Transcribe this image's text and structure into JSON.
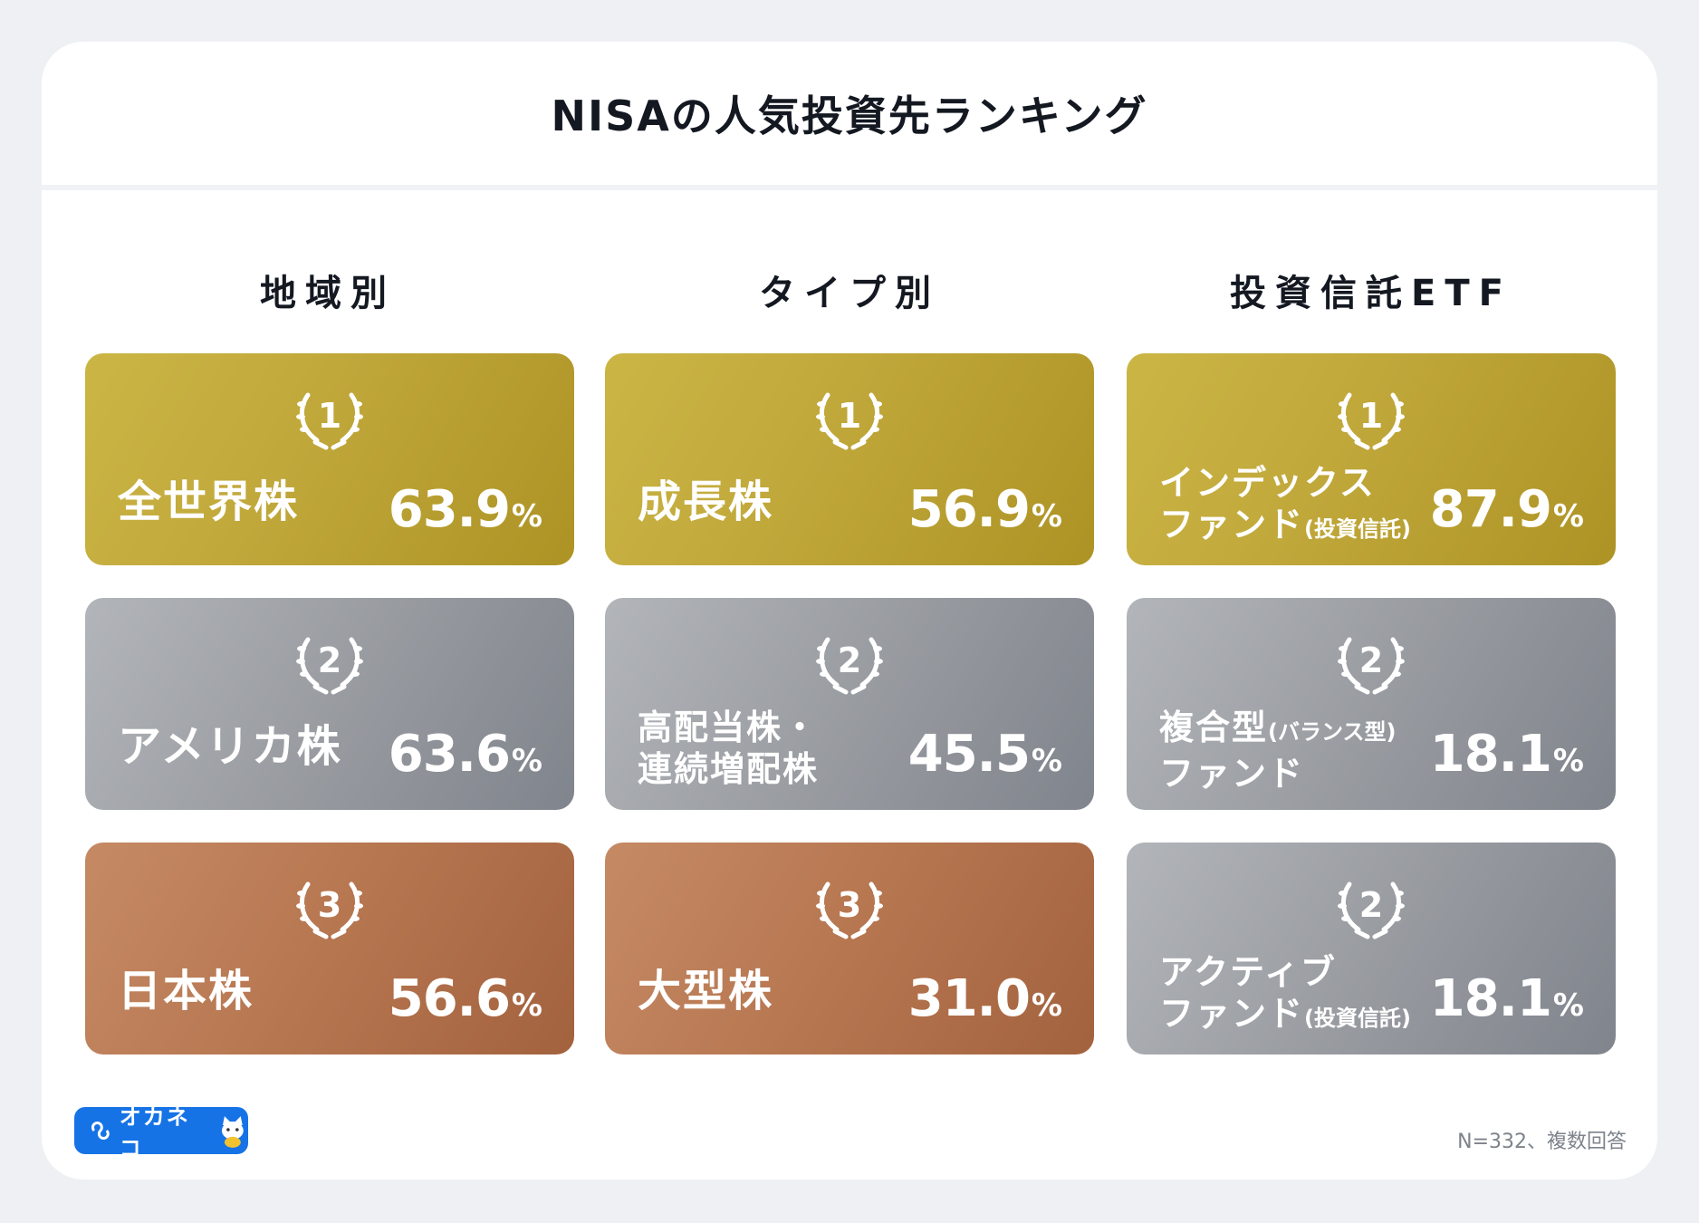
{
  "title": "NISAの人気投資先ランキング",
  "columns": [
    {
      "heading": "地域別",
      "items": [
        {
          "rank": "1",
          "tier": "gold",
          "label": "全世界株",
          "value": "63.9",
          "unit": "%"
        },
        {
          "rank": "2",
          "tier": "silver",
          "label": "アメリカ株",
          "value": "63.6",
          "unit": "%"
        },
        {
          "rank": "3",
          "tier": "bronze",
          "label": "日本株",
          "value": "56.6",
          "unit": "%"
        }
      ]
    },
    {
      "heading": "タイプ別",
      "items": [
        {
          "rank": "1",
          "tier": "gold",
          "label": "成長株",
          "value": "56.9",
          "unit": "%"
        },
        {
          "rank": "2",
          "tier": "silver",
          "label_line1": "高配当株・",
          "label_line2": "連続増配株",
          "value": "45.5",
          "unit": "%"
        },
        {
          "rank": "3",
          "tier": "bronze",
          "label": "大型株",
          "value": "31.0",
          "unit": "%"
        }
      ]
    },
    {
      "heading": "投資信託ETF",
      "items": [
        {
          "rank": "1",
          "tier": "gold",
          "label_line1": "インデックス",
          "label_line2": "ファンド",
          "label_sub": "(投資信託)",
          "value": "87.9",
          "unit": "%"
        },
        {
          "rank": "2",
          "tier": "silver",
          "label_line1": "複合型",
          "label_sub_line1": "(バランス型)",
          "label_line2": "ファンド",
          "value": "18.1",
          "unit": "%"
        },
        {
          "rank": "2",
          "tier": "silver",
          "label_line1": "アクティブ",
          "label_line2": "ファンド",
          "label_sub": "(投資信託)",
          "value": "18.1",
          "unit": "%"
        }
      ]
    }
  ],
  "logo": {
    "text": "オカネコ"
  },
  "footnote": "N=332、複数回答",
  "colors": {
    "gold": "#c0a73a",
    "silver": "#999ca1",
    "bronze": "#b67650",
    "brand": "#1673e6"
  }
}
